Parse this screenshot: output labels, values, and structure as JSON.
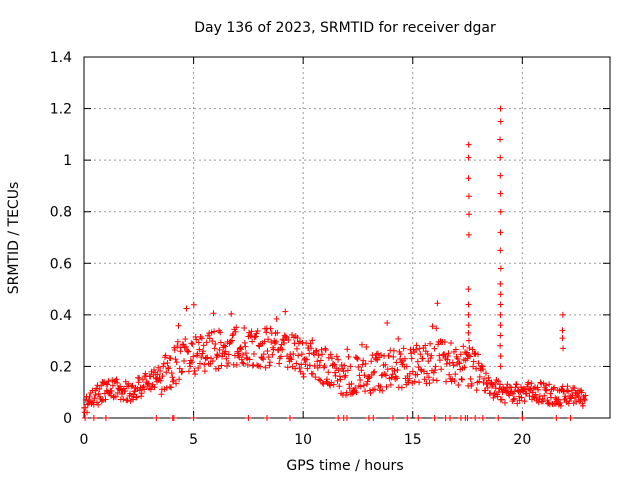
{
  "chart_data": {
    "type": "scatter",
    "title": "Day 136 of 2023, SRMTID for receiver dgar",
    "xlabel": "GPS time / hours",
    "ylabel": "SRMTID / TECUs",
    "xlim": [
      0,
      24
    ],
    "ylim": [
      0,
      1.4
    ],
    "xticks": [
      0,
      5,
      10,
      15,
      20
    ],
    "yticks": [
      0,
      0.2,
      0.4,
      0.6,
      0.8,
      1,
      1.2,
      1.4
    ],
    "ytick_labels": [
      "0",
      "0.2",
      "0.4",
      "0.6",
      "0.8",
      "1",
      "1.2",
      "1.4"
    ],
    "grid": true,
    "marker": "+",
    "series": [
      {
        "name": "SRMTID",
        "color": "#ff0000",
        "baseline_profile": {
          "x": [
            0,
            0.5,
            1,
            1.5,
            2,
            2.5,
            3,
            3.5,
            4,
            4.5,
            5,
            5.5,
            6,
            6.5,
            7,
            7.5,
            8,
            8.5,
            9,
            9.5,
            10,
            10.5,
            11,
            11.5,
            12,
            12.5,
            13,
            13.5,
            14,
            14.5,
            15,
            15.5,
            16,
            16.5,
            17,
            17.5,
            18,
            18.5,
            19,
            19.5,
            20,
            20.5,
            21,
            21.5,
            22,
            22.5,
            22.9
          ],
          "y": [
            0.05,
            0.08,
            0.11,
            0.11,
            0.1,
            0.12,
            0.14,
            0.16,
            0.2,
            0.23,
            0.24,
            0.25,
            0.26,
            0.27,
            0.28,
            0.28,
            0.28,
            0.27,
            0.27,
            0.26,
            0.24,
            0.22,
            0.19,
            0.17,
            0.16,
            0.16,
            0.17,
            0.18,
            0.19,
            0.19,
            0.2,
            0.21,
            0.22,
            0.22,
            0.2,
            0.2,
            0.18,
            0.12,
            0.1,
            0.09,
            0.1,
            0.1,
            0.1,
            0.08,
            0.09,
            0.08,
            0.07
          ]
        },
        "spikes": [
          {
            "x": 17.55,
            "y": [
              1.06,
              1.01,
              0.93,
              0.86,
              0.79,
              0.71,
              0.5,
              0.44,
              0.4,
              0.36,
              0.33,
              0.3
            ]
          },
          {
            "x": 19.0,
            "y": [
              1.2,
              1.15,
              1.08,
              1.01,
              0.94,
              0.87,
              0.8,
              0.72,
              0.65,
              0.58,
              0.52,
              0.48,
              0.44,
              0.4,
              0.36,
              0.32,
              0.28,
              0.24,
              0.2
            ]
          },
          {
            "x": 21.85,
            "y": [
              0.4,
              0.34,
              0.31,
              0.27
            ]
          }
        ],
        "zero_points_x": [
          0.05,
          0.45,
          1.0,
          3.3,
          4.05,
          4.1,
          5.0,
          7.5,
          8.35,
          9.4,
          11.6,
          11.85,
          12.0,
          13.0,
          13.2,
          14.1,
          14.75,
          15.25,
          16.0,
          16.5,
          16.7,
          17.2,
          17.4,
          17.5,
          17.85,
          18.2,
          18.9,
          20.0,
          21.55,
          22.2
        ]
      }
    ]
  }
}
